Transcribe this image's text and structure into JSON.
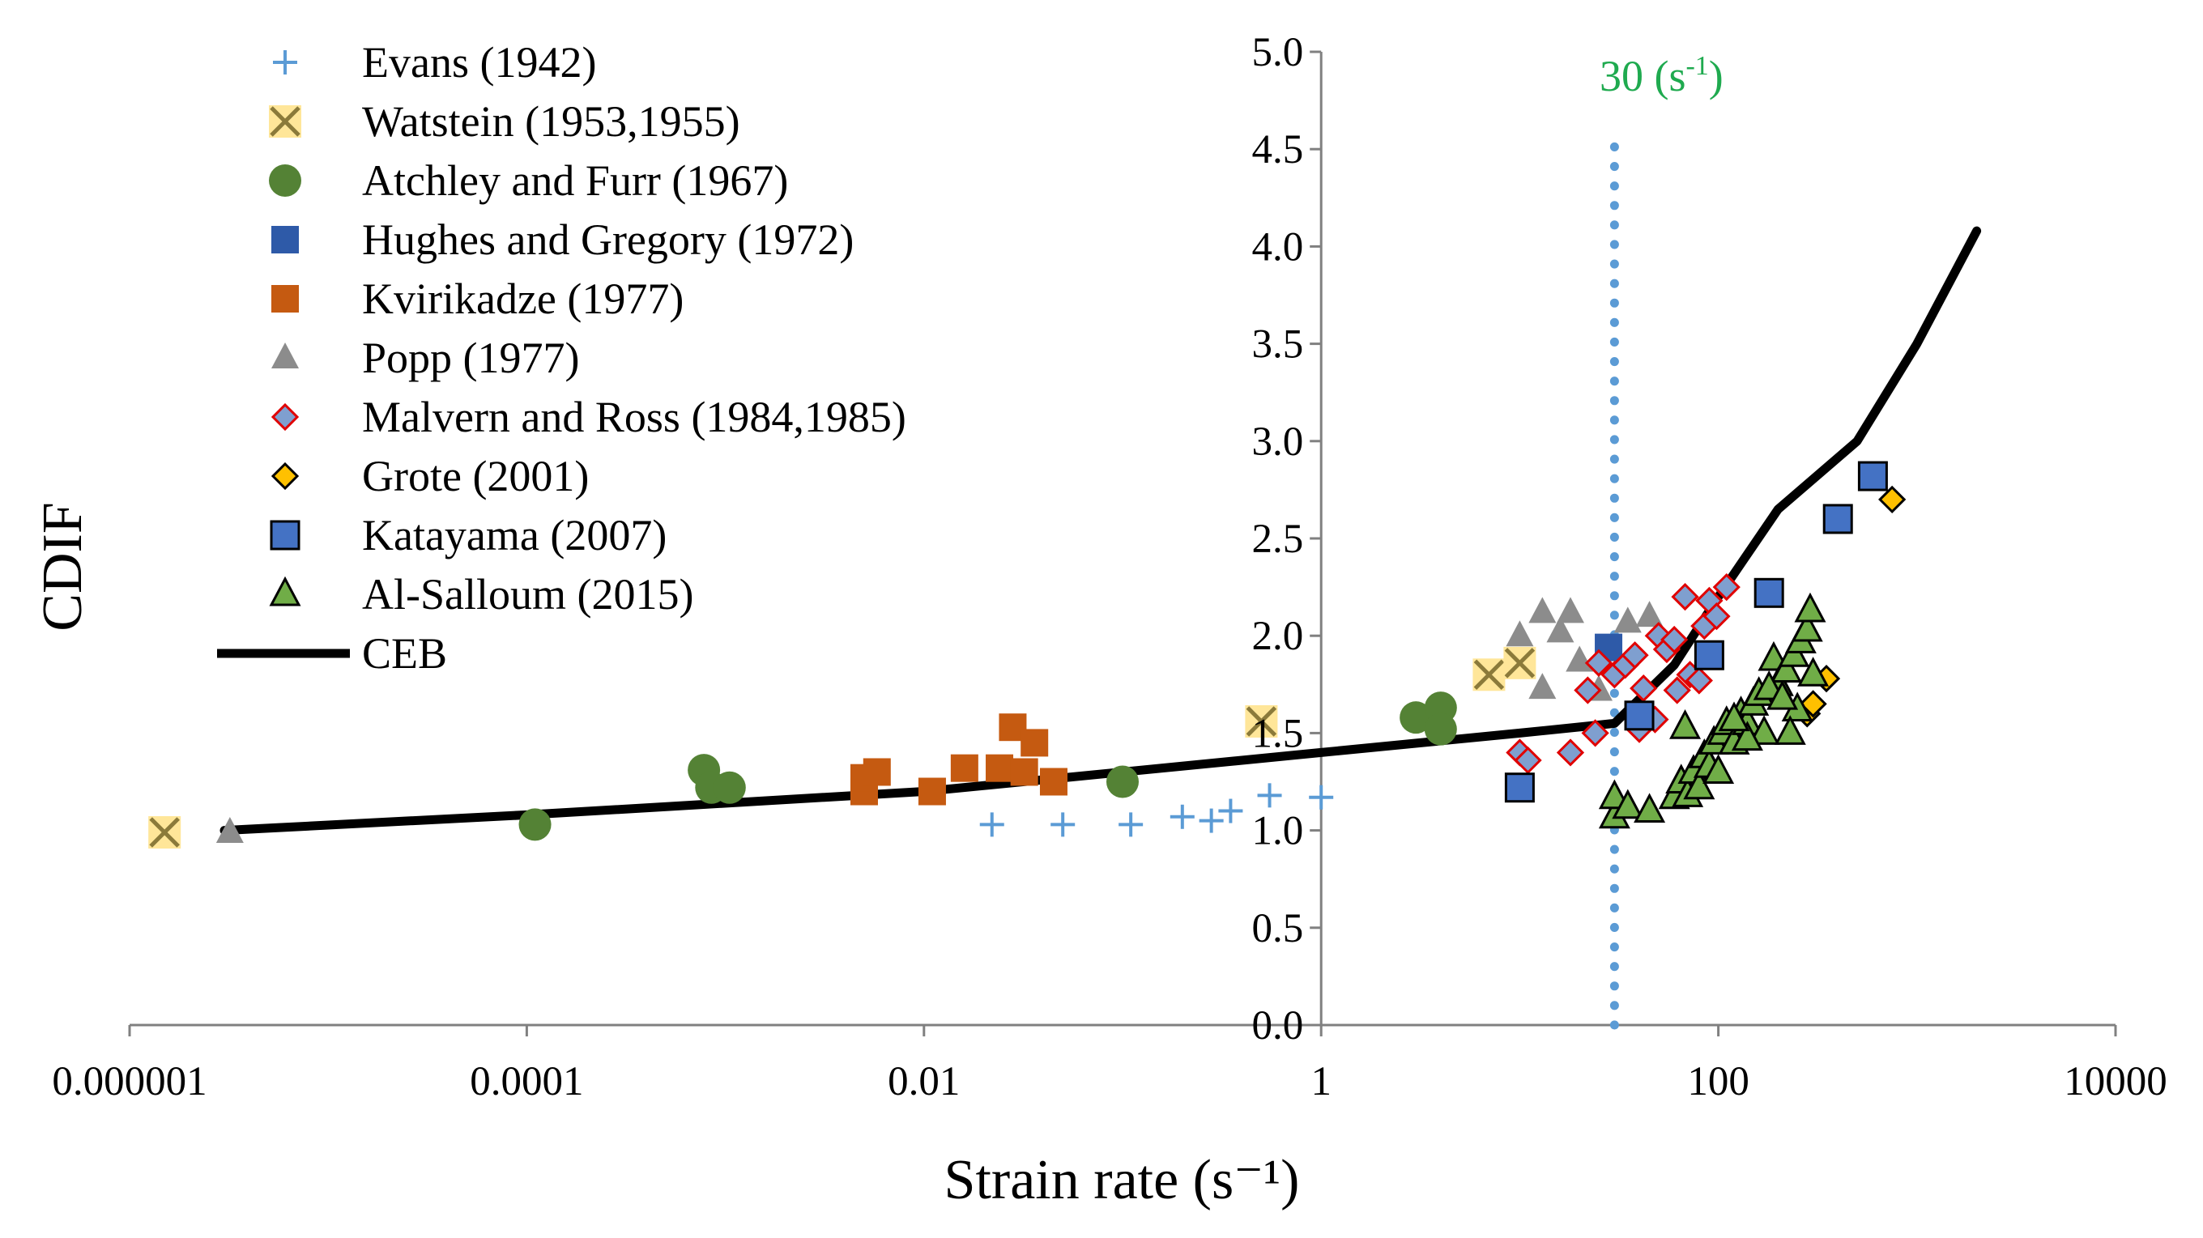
{
  "chart_data": {
    "type": "scatter",
    "xlabel": "Strain rate (s⁻¹)",
    "ylabel": "CDIF",
    "xscale": "log",
    "xlim": [
      1e-06,
      10000
    ],
    "ylim": [
      0,
      5
    ],
    "x_ticks": [
      1e-06,
      0.0001,
      0.01,
      1,
      100,
      10000
    ],
    "x_tick_labels": [
      "0.000001",
      "0.0001",
      "0.01",
      "1",
      "100",
      "10000"
    ],
    "y_ticks": [
      0,
      0.5,
      1,
      1.5,
      2,
      2.5,
      3,
      3.5,
      4,
      4.5,
      5
    ],
    "y_tick_labels": [
      "0.0",
      "0.5",
      "1.0",
      "1.5",
      "2.0",
      "2.5",
      "3.0",
      "3.5",
      "4.0",
      "4.5",
      "5.0"
    ],
    "vertical_line": {
      "x": 30,
      "label_main": "30 (s",
      "label_sup": "-1",
      "label_end": ")",
      "color": "#5b9bd5"
    },
    "series": [
      {
        "name": "Evans (1942)",
        "marker": "plus",
        "color": "#5b9bd5",
        "points": [
          [
            0.022,
            1.03
          ],
          [
            0.05,
            1.03
          ],
          [
            0.11,
            1.03
          ],
          [
            0.2,
            1.07
          ],
          [
            0.28,
            1.05
          ],
          [
            0.35,
            1.1
          ],
          [
            0.55,
            1.18
          ],
          [
            1.0,
            1.17
          ]
        ]
      },
      {
        "name": "Watstein (1953,1955)",
        "marker": "x",
        "color": "#ffe699",
        "stroke": "#8b7a3a",
        "points": [
          [
            1.5e-06,
            0.99
          ],
          [
            0.5,
            1.56
          ],
          [
            7,
            1.8
          ],
          [
            10,
            1.86
          ]
        ]
      },
      {
        "name": "Atchley and Furr (1967)",
        "marker": "circle",
        "color": "#548235",
        "points": [
          [
            0.00011,
            1.03
          ],
          [
            0.00078,
            1.31
          ],
          [
            0.00085,
            1.22
          ],
          [
            0.00105,
            1.22
          ],
          [
            0.1,
            1.25
          ],
          [
            3,
            1.58
          ],
          [
            4,
            1.63
          ],
          [
            4,
            1.52
          ]
        ]
      },
      {
        "name": "Hughes and Gregory (1972)",
        "marker": "square",
        "color": "#2e5aa8",
        "points": [
          [
            28,
            1.94
          ]
        ]
      },
      {
        "name": "Kvirikadze (1977)",
        "marker": "square",
        "color": "#c55a11",
        "points": [
          [
            0.005,
            1.2
          ],
          [
            0.005,
            1.27
          ],
          [
            0.0058,
            1.3
          ],
          [
            0.011,
            1.2
          ],
          [
            0.016,
            1.32
          ],
          [
            0.024,
            1.32
          ],
          [
            0.028,
            1.53
          ],
          [
            0.032,
            1.3
          ],
          [
            0.036,
            1.45
          ],
          [
            0.045,
            1.25
          ]
        ]
      },
      {
        "name": "Popp (1977)",
        "marker": "triangle",
        "color": "#8c8c8c",
        "points": [
          [
            3.2e-06,
            0.99
          ],
          [
            10,
            2.0
          ],
          [
            13,
            2.12
          ],
          [
            13,
            1.73
          ],
          [
            16,
            2.02
          ],
          [
            18,
            2.12
          ],
          [
            20,
            1.87
          ],
          [
            35,
            2.07
          ],
          [
            45,
            2.1
          ],
          [
            25,
            1.72
          ]
        ]
      },
      {
        "name": "Malvern and Ross (1984,1985)",
        "marker": "diamond",
        "color": "#7f9fcf",
        "stroke": "#e00000",
        "points": [
          [
            10,
            1.4
          ],
          [
            11,
            1.36
          ],
          [
            18,
            1.4
          ],
          [
            22,
            1.72
          ],
          [
            24,
            1.5
          ],
          [
            25,
            1.86
          ],
          [
            30,
            1.8
          ],
          [
            34,
            1.85
          ],
          [
            38,
            1.9
          ],
          [
            40,
            1.52
          ],
          [
            42,
            1.73
          ],
          [
            48,
            1.57
          ],
          [
            50,
            2.0
          ],
          [
            55,
            1.93
          ],
          [
            60,
            1.98
          ],
          [
            62,
            1.72
          ],
          [
            68,
            2.2
          ],
          [
            72,
            1.8
          ],
          [
            80,
            1.77
          ],
          [
            85,
            2.05
          ],
          [
            90,
            2.18
          ],
          [
            98,
            2.1
          ],
          [
            110,
            2.25
          ]
        ]
      },
      {
        "name": "Grote (2001)",
        "marker": "diamond",
        "color": "#ffc000",
        "stroke": "#000000",
        "points": [
          [
            280,
            1.6
          ],
          [
            300,
            1.65
          ],
          [
            350,
            1.78
          ],
          [
            750,
            2.7
          ]
        ]
      },
      {
        "name": "Katayama (2007)",
        "marker": "square",
        "color": "#4472c4",
        "stroke": "#000000",
        "points": [
          [
            10,
            1.22
          ],
          [
            40,
            1.59
          ],
          [
            90,
            1.9
          ],
          [
            180,
            2.22
          ],
          [
            400,
            2.6
          ],
          [
            600,
            2.82
          ]
        ]
      },
      {
        "name": "Al-Salloum (2015)",
        "marker": "triangle",
        "color": "#70ad47",
        "stroke": "#000000",
        "points": [
          [
            30,
            1.07
          ],
          [
            30,
            1.17
          ],
          [
            35,
            1.12
          ],
          [
            45,
            1.1
          ],
          [
            60,
            1.17
          ],
          [
            65,
            1.25
          ],
          [
            68,
            1.53
          ],
          [
            70,
            1.18
          ],
          [
            75,
            1.3
          ],
          [
            80,
            1.22
          ],
          [
            85,
            1.38
          ],
          [
            90,
            1.33
          ],
          [
            95,
            1.45
          ],
          [
            100,
            1.3
          ],
          [
            105,
            1.5
          ],
          [
            110,
            1.55
          ],
          [
            120,
            1.45
          ],
          [
            130,
            1.6
          ],
          [
            140,
            1.55
          ],
          [
            150,
            1.65
          ],
          [
            160,
            1.7
          ],
          [
            190,
            1.88
          ],
          [
            200,
            1.75
          ],
          [
            220,
            1.82
          ],
          [
            240,
            1.9
          ],
          [
            260,
            1.97
          ],
          [
            280,
            2.03
          ],
          [
            290,
            2.13
          ],
          [
            300,
            1.8
          ],
          [
            250,
            1.62
          ],
          [
            230,
            1.5
          ],
          [
            170,
            1.5
          ],
          [
            140,
            1.47
          ],
          [
            120,
            1.57
          ],
          [
            180,
            1.73
          ],
          [
            210,
            1.68
          ]
        ]
      },
      {
        "name": "CEB",
        "marker": "line",
        "color": "#000000",
        "points": [
          [
            3e-06,
            1.0
          ],
          [
            0.0001,
            1.08
          ],
          [
            0.01,
            1.2
          ],
          [
            1,
            1.4
          ],
          [
            10,
            1.5
          ],
          [
            30,
            1.55
          ],
          [
            60,
            1.85
          ],
          [
            100,
            2.2
          ],
          [
            200,
            2.65
          ],
          [
            500,
            3.0
          ],
          [
            1000,
            3.5
          ],
          [
            2000,
            4.08
          ]
        ]
      }
    ]
  }
}
